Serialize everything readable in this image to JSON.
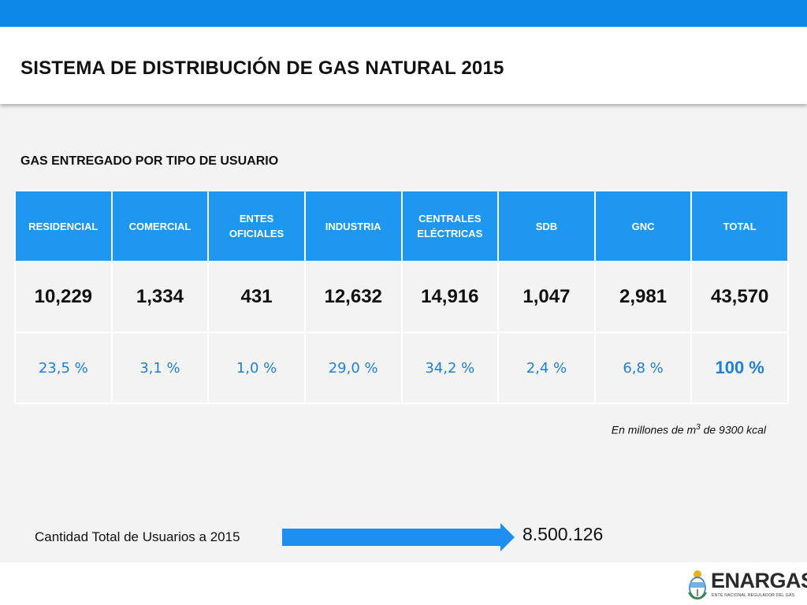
{
  "header": {
    "title": "SISTEMA DE DISTRIBUCIÓN DE GAS NATURAL 2015"
  },
  "section": {
    "title": "GAS ENTREGADO POR TIPO DE USUARIO"
  },
  "table": {
    "headers": [
      "RESIDENCIAL",
      "COMERCIAL",
      "ENTES OFICIALES",
      "INDUSTRIA",
      "CENTRALES ELÉCTRICAS",
      "SDB",
      "GNC",
      "TOTAL"
    ],
    "values": [
      "10,229",
      "1,334",
      "431",
      "12,632",
      "14,916",
      "1,047",
      "2,981",
      "43,570"
    ],
    "percentages": [
      "23,5 %",
      "3,1 %",
      "1,0 %",
      "29,0 %",
      "34,2 %",
      "2,4 %",
      "6,8 %",
      "100 %"
    ]
  },
  "units_note": {
    "prefix": "En millones de m",
    "superscript": "3",
    "suffix": " de 9300 kcal"
  },
  "users": {
    "label": "Cantidad Total de Usuarios a 2015",
    "value": "8.500.126"
  },
  "logo": {
    "name": "ENARGAS",
    "subtitle": "ENTE NACIONAL REGULADOR DEL GAS"
  },
  "colors": {
    "top_bar": "#0d88e8",
    "header_cell": "#1e97f0",
    "percent_text": "#1f7fdc",
    "arrow": "#1e8ff0"
  }
}
